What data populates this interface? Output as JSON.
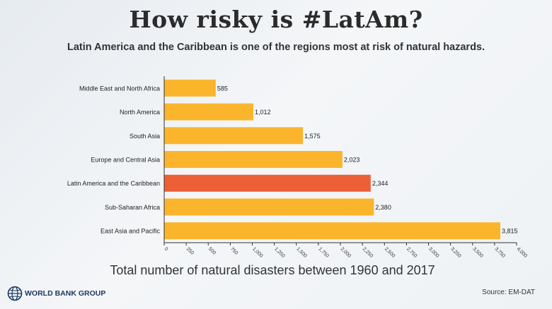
{
  "title": "How risky is #LatAm?",
  "subtitle": "Latin America and the Caribbean is one of the regions most at risk of natural hazards.",
  "footer": {
    "logo_text": "WORLD BANK GROUP",
    "source": "Source: EM-DAT"
  },
  "colors": {
    "bar": "#fbb52c",
    "highlight": "#ec5f37",
    "axis": "#333333"
  },
  "chart_data": {
    "type": "bar",
    "orientation": "horizontal",
    "categories": [
      "Middle East and North Africa",
      "North America",
      "South Asia",
      "Europe and Central Asia",
      "Latin America and the Caribbean",
      "Sub-Saharan Africa",
      "East Asia and Pacific"
    ],
    "values": [
      585,
      1012,
      1575,
      2023,
      2344,
      2380,
      3815
    ],
    "data_labels": [
      "585",
      "1,012",
      "1,575",
      "2,023",
      "2,344",
      "2,380",
      "3,815"
    ],
    "highlight_category": "Latin America and the Caribbean",
    "xlabel": "Total number of natural disasters between 1960 and 2017",
    "ylabel": "",
    "xlim": [
      0,
      4000
    ],
    "xticks": [
      "0",
      "250",
      "500",
      "750",
      "1,000",
      "1,250",
      "1,500",
      "1,750",
      "2,000",
      "2,250",
      "2,500",
      "2,750",
      "3,000",
      "3,250",
      "3,500",
      "3,750",
      "4,000"
    ],
    "grid": false,
    "legend": "none"
  }
}
